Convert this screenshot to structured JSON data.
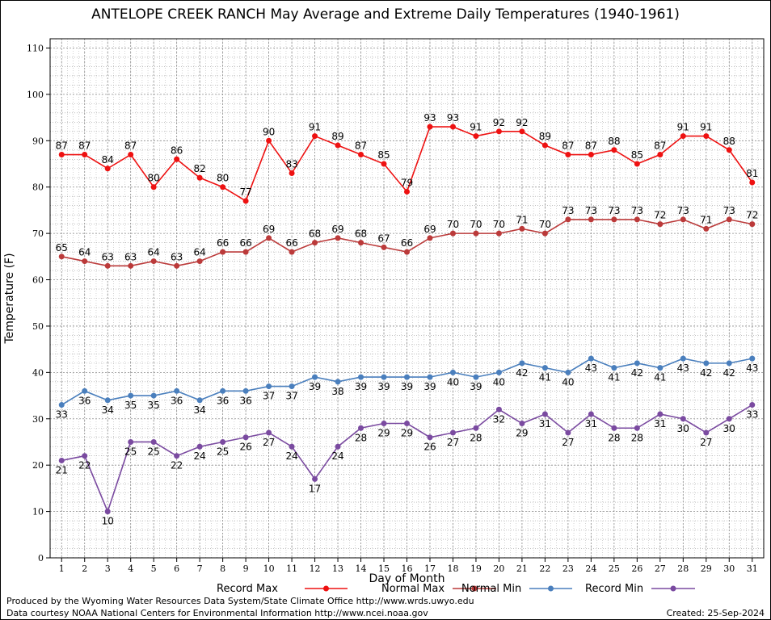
{
  "chart_data": {
    "type": "line",
    "title": "ANTELOPE CREEK RANCH May Average and Extreme Daily Temperatures (1940-1961)",
    "xlabel": "Day of Month",
    "ylabel": "Temperature (F)",
    "xlim": [
      0.5,
      31.5
    ],
    "ylim": [
      0,
      112
    ],
    "y_ticks": [
      0,
      10,
      20,
      30,
      40,
      50,
      60,
      70,
      80,
      90,
      100,
      110
    ],
    "x": [
      1,
      2,
      3,
      4,
      5,
      6,
      7,
      8,
      9,
      10,
      11,
      12,
      13,
      14,
      15,
      16,
      17,
      18,
      19,
      20,
      21,
      22,
      23,
      24,
      25,
      26,
      27,
      28,
      29,
      30,
      31
    ],
    "grid": true,
    "legend_position": "bottom",
    "series": [
      {
        "name": "Record Max",
        "color": "#ee1111",
        "label_position": "above",
        "values": [
          87,
          87,
          84,
          87,
          80,
          86,
          82,
          80,
          77,
          90,
          83,
          91,
          89,
          87,
          85,
          79,
          93,
          93,
          91,
          92,
          92,
          89,
          87,
          87,
          88,
          85,
          87,
          91,
          91,
          88,
          81
        ]
      },
      {
        "name": "Normal Max",
        "color": "#bb3a3a",
        "label_position": "above",
        "values": [
          65,
          64,
          63,
          63,
          64,
          63,
          64,
          66,
          66,
          69,
          66,
          68,
          69,
          68,
          67,
          66,
          69,
          70,
          70,
          70,
          71,
          70,
          73,
          73,
          73,
          73,
          72,
          73,
          71,
          73,
          72
        ]
      },
      {
        "name": "Normal Min",
        "color": "#4a7fbd",
        "label_position": "below",
        "values": [
          33,
          36,
          34,
          35,
          35,
          36,
          34,
          36,
          36,
          37,
          37,
          39,
          38,
          39,
          39,
          39,
          39,
          40,
          39,
          40,
          42,
          41,
          40,
          43,
          41,
          42,
          41,
          43,
          42,
          42,
          43
        ]
      },
      {
        "name": "Record Min",
        "color": "#7a4aa0",
        "label_position": "below",
        "values": [
          21,
          22,
          10,
          25,
          25,
          22,
          24,
          25,
          26,
          27,
          24,
          17,
          24,
          28,
          29,
          29,
          26,
          27,
          28,
          32,
          29,
          31,
          27,
          31,
          28,
          28,
          31,
          30,
          27,
          30,
          33
        ]
      }
    ]
  },
  "footer": {
    "line1": "Produced by the Wyoming Water Resources Data System/State Climate Office http://www.wrds.uwyo.edu",
    "line2": "Data courtesy NOAA National Centers for Environmental Information http://www.ncei.noaa.gov",
    "created": "Created:  25-Sep-2024"
  }
}
